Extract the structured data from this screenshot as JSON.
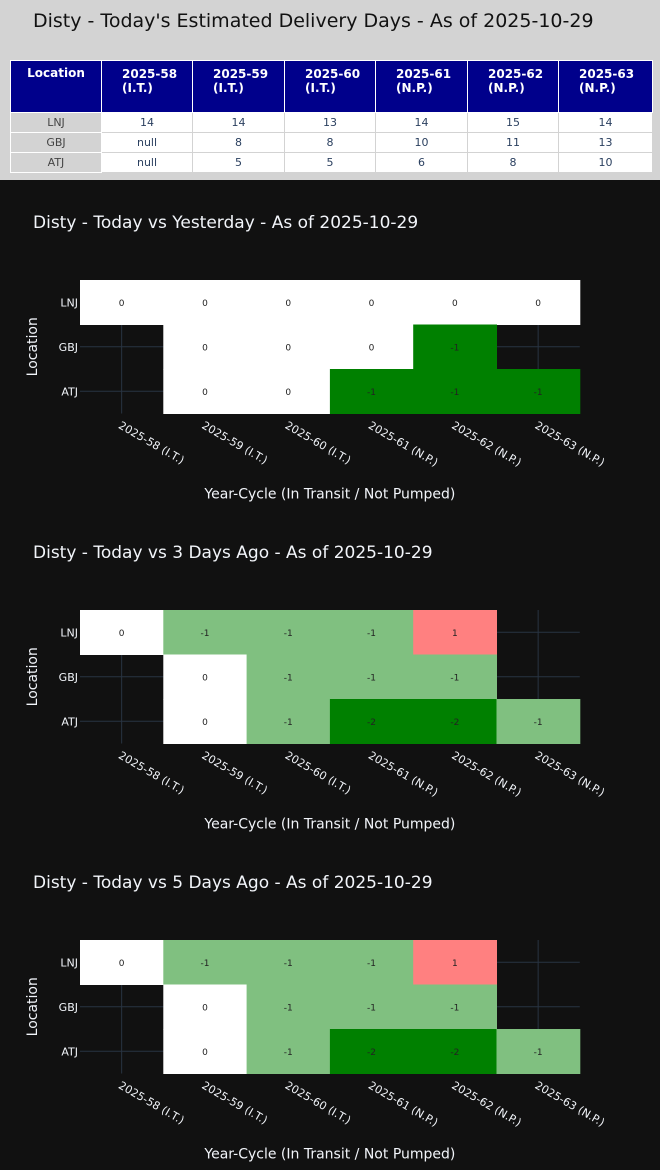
{
  "table": {
    "title": "Disty - Today's Estimated Delivery Days - As of 2025-10-29",
    "header_location": "Location",
    "columns": [
      {
        "cycle": "2025-58",
        "status": "(I.T.)"
      },
      {
        "cycle": "2025-59",
        "status": "(I.T.)"
      },
      {
        "cycle": "2025-60",
        "status": "(I.T.)"
      },
      {
        "cycle": "2025-61",
        "status": "(N.P.)"
      },
      {
        "cycle": "2025-62",
        "status": "(N.P.)"
      },
      {
        "cycle": "2025-63",
        "status": "(N.P.)"
      }
    ],
    "rows": [
      {
        "location": "LNJ",
        "values": [
          "14",
          "14",
          "13",
          "14",
          "15",
          "14"
        ]
      },
      {
        "location": "GBJ",
        "values": [
          "null",
          "8",
          "8",
          "10",
          "11",
          "13"
        ]
      },
      {
        "location": "ATJ",
        "values": [
          "null",
          "5",
          "5",
          "6",
          "8",
          "10"
        ]
      }
    ]
  },
  "colors": {
    "zero": "#ffffff",
    "minus1_dark": "#008000",
    "minus1_light": "#80c080",
    "minus2": "#008000",
    "plus1": "#ff8080",
    "plot_bg": "#111111",
    "grid": "#283442"
  },
  "chart_data": [
    {
      "type": "heatmap",
      "title": "Disty - Today vs Yesterday - As of 2025-10-29",
      "xlabel": "Year-Cycle (In Transit / Not Pumped)",
      "ylabel": "Location",
      "x": [
        "2025-58 (I.T.)",
        "2025-59 (I.T.)",
        "2025-60 (I.T.)",
        "2025-61 (N.P.)",
        "2025-62 (N.P.)",
        "2025-63 (N.P.)"
      ],
      "y": [
        "LNJ",
        "GBJ",
        "ATJ"
      ],
      "z": [
        [
          0,
          0,
          0,
          0,
          0,
          0
        ],
        [
          null,
          0,
          0,
          0,
          -1,
          null
        ],
        [
          null,
          0,
          0,
          -1,
          -1,
          -1
        ]
      ],
      "scale": {
        "0": "#ffffff",
        "-1": "#008000"
      }
    },
    {
      "type": "heatmap",
      "title": "Disty - Today vs 3 Days Ago - As of 2025-10-29",
      "xlabel": "Year-Cycle (In Transit / Not Pumped)",
      "ylabel": "Location",
      "x": [
        "2025-58 (I.T.)",
        "2025-59 (I.T.)",
        "2025-60 (I.T.)",
        "2025-61 (N.P.)",
        "2025-62 (N.P.)",
        "2025-63 (N.P.)"
      ],
      "y": [
        "LNJ",
        "GBJ",
        "ATJ"
      ],
      "z": [
        [
          0,
          -1,
          -1,
          -1,
          1,
          null
        ],
        [
          null,
          0,
          -1,
          -1,
          -1,
          null
        ],
        [
          null,
          0,
          -1,
          -2,
          -2,
          -1
        ]
      ],
      "scale": {
        "1": "#ff8080",
        "0": "#ffffff",
        "-1": "#80c080",
        "-2": "#008000"
      }
    },
    {
      "type": "heatmap",
      "title": "Disty - Today vs 5 Days Ago - As of 2025-10-29",
      "xlabel": "Year-Cycle (In Transit / Not Pumped)",
      "ylabel": "Location",
      "x": [
        "2025-58 (I.T.)",
        "2025-59 (I.T.)",
        "2025-60 (I.T.)",
        "2025-61 (N.P.)",
        "2025-62 (N.P.)",
        "2025-63 (N.P.)"
      ],
      "y": [
        "LNJ",
        "GBJ",
        "ATJ"
      ],
      "z": [
        [
          0,
          -1,
          -1,
          -1,
          1,
          null
        ],
        [
          null,
          0,
          -1,
          -1,
          -1,
          null
        ],
        [
          null,
          0,
          -1,
          -2,
          -2,
          -1
        ]
      ],
      "scale": {
        "1": "#ff8080",
        "0": "#ffffff",
        "-1": "#80c080",
        "-2": "#008000"
      }
    }
  ]
}
